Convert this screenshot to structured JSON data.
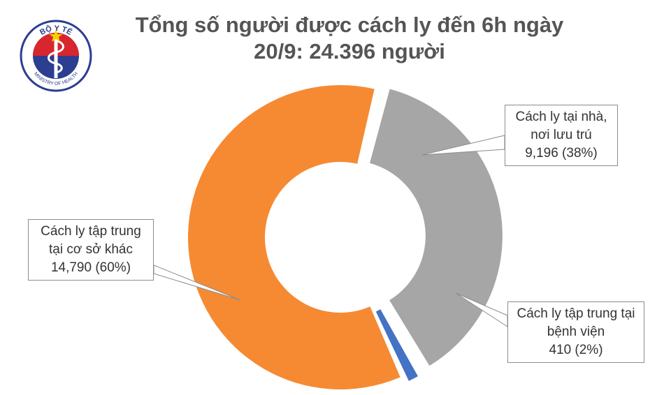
{
  "header": {
    "title_line1": "Tổng số người được cách ly đến 6h ngày",
    "title_line2": "20/9: 24.396 người"
  },
  "logo": {
    "top_text": "BỘ Y TẾ",
    "bottom_text": "MINISTRY OF HEALTH",
    "icon": "ministry-of-health-seal"
  },
  "colors": {
    "home": "#a6a6a6",
    "hospital": "#4472c4",
    "facility": "#f58a33",
    "title": "#555555",
    "logo_blue": "#2b3e8f",
    "logo_red": "#d7262e"
  },
  "chart_data": {
    "type": "pie",
    "donut": true,
    "title": "Tổng số người được cách ly đến 6h ngày 20/9: 24.396 người",
    "total": 24396,
    "series": [
      {
        "name": "Cách ly tại nhà, nơi lưu trú",
        "value": 9196,
        "percent": 38,
        "label_lines": [
          "Cách ly tại nhà,",
          "nơi lưu trú",
          "9,196 (38%)"
        ],
        "color": "#a6a6a6"
      },
      {
        "name": "Cách ly tập trung tại bệnh viện",
        "value": 410,
        "percent": 2,
        "label_lines": [
          "Cách ly tập trung tại",
          "bệnh viện",
          "410 (2%)"
        ],
        "color": "#4472c4"
      },
      {
        "name": "Cách ly tập trung tại cơ sở khác",
        "value": 14790,
        "percent": 60,
        "label_lines": [
          "Cách ly tập trung",
          "tại cơ sở khác",
          "14,790 (60%)"
        ],
        "color": "#f58a33"
      }
    ]
  }
}
